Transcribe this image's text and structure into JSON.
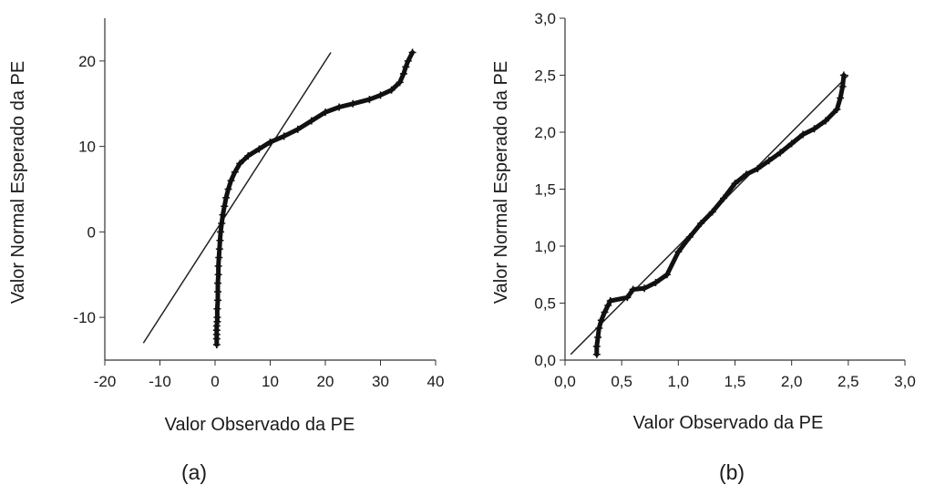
{
  "chart_data": [
    {
      "type": "scatter",
      "panel_label": "(a)",
      "xlabel": "Valor Observado da PE",
      "ylabel": "Valor Normal Esperado da PE",
      "xlim": [
        -20,
        40
      ],
      "ylim": [
        -15,
        25
      ],
      "xticks": [
        -20,
        -10,
        0,
        10,
        20,
        30,
        40
      ],
      "yticks": [
        -10,
        0,
        10,
        20
      ],
      "xtick_labels": [
        "-20",
        "-10",
        "0",
        "10",
        "20",
        "30",
        "40"
      ],
      "ytick_labels": [
        "-10",
        "0",
        "10",
        "20"
      ],
      "reference_line": [
        [
          -13,
          -13
        ],
        [
          21,
          21
        ]
      ],
      "marker": "+",
      "series": [
        {
          "points": [
            [
              0.3,
              -13.2
            ],
            [
              0.3,
              -12.5
            ],
            [
              0.3,
              -12.0
            ],
            [
              0.3,
              -11.5
            ],
            [
              0.3,
              -11.0
            ],
            [
              0.4,
              -10.5
            ],
            [
              0.4,
              -10.0
            ],
            [
              0.4,
              -9.0
            ],
            [
              0.5,
              -8.0
            ],
            [
              0.5,
              -7.0
            ],
            [
              0.5,
              -6.0
            ],
            [
              0.6,
              -5.0
            ],
            [
              0.6,
              -4.0
            ],
            [
              0.7,
              -3.0
            ],
            [
              0.8,
              -2.0
            ],
            [
              0.9,
              -1.0
            ],
            [
              1.0,
              0.0
            ],
            [
              1.2,
              1.0
            ],
            [
              1.4,
              2.0
            ],
            [
              1.7,
              3.0
            ],
            [
              2.0,
              4.0
            ],
            [
              2.4,
              5.0
            ],
            [
              2.9,
              6.0
            ],
            [
              3.6,
              7.0
            ],
            [
              4.5,
              8.0
            ],
            [
              6.0,
              8.9
            ],
            [
              8.0,
              9.7
            ],
            [
              10.0,
              10.5
            ],
            [
              12.5,
              11.2
            ],
            [
              15.0,
              12.0
            ],
            [
              17.5,
              13.0
            ],
            [
              20.0,
              14.0
            ],
            [
              22.5,
              14.6
            ],
            [
              25.0,
              15.0
            ],
            [
              28.0,
              15.5
            ],
            [
              30.0,
              16.0
            ],
            [
              32.0,
              16.6
            ],
            [
              33.5,
              17.5
            ],
            [
              34.2,
              18.5
            ],
            [
              34.6,
              19.3
            ],
            [
              35.0,
              20.0
            ],
            [
              35.8,
              21.0
            ]
          ]
        }
      ]
    },
    {
      "type": "scatter",
      "panel_label": "(b)",
      "xlabel": "Valor Observado da PE",
      "ylabel": "Valor Normal Esperado da PE",
      "xlim": [
        0,
        3
      ],
      "ylim": [
        0,
        3
      ],
      "xticks": [
        0,
        0.5,
        1,
        1.5,
        2,
        2.5,
        3
      ],
      "yticks": [
        0,
        0.5,
        1,
        1.5,
        2,
        2.5,
        3
      ],
      "xtick_labels": [
        "0,0",
        "0,5",
        "1,0",
        "1,5",
        "2,0",
        "2,5",
        "3,0"
      ],
      "ytick_labels": [
        "0,0",
        "0,5",
        "1,0",
        "1,5",
        "2,0",
        "2,5",
        "3,0"
      ],
      "reference_line": [
        [
          0.05,
          0.05
        ],
        [
          2.5,
          2.5
        ]
      ],
      "marker": "+",
      "series": [
        {
          "points": [
            [
              0.28,
              0.05
            ],
            [
              0.28,
              0.12
            ],
            [
              0.29,
              0.2
            ],
            [
              0.3,
              0.28
            ],
            [
              0.32,
              0.35
            ],
            [
              0.35,
              0.42
            ],
            [
              0.38,
              0.48
            ],
            [
              0.4,
              0.52
            ],
            [
              0.55,
              0.55
            ],
            [
              0.6,
              0.62
            ],
            [
              0.7,
              0.63
            ],
            [
              0.8,
              0.68
            ],
            [
              0.9,
              0.75
            ],
            [
              1.0,
              0.95
            ],
            [
              1.1,
              1.08
            ],
            [
              1.2,
              1.2
            ],
            [
              1.3,
              1.3
            ],
            [
              1.4,
              1.42
            ],
            [
              1.5,
              1.55
            ],
            [
              1.6,
              1.63
            ],
            [
              1.7,
              1.68
            ],
            [
              1.8,
              1.75
            ],
            [
              1.9,
              1.82
            ],
            [
              2.0,
              1.9
            ],
            [
              2.1,
              1.98
            ],
            [
              2.2,
              2.03
            ],
            [
              2.3,
              2.1
            ],
            [
              2.4,
              2.2
            ],
            [
              2.43,
              2.3
            ],
            [
              2.45,
              2.4
            ],
            [
              2.46,
              2.5
            ]
          ]
        }
      ]
    }
  ]
}
